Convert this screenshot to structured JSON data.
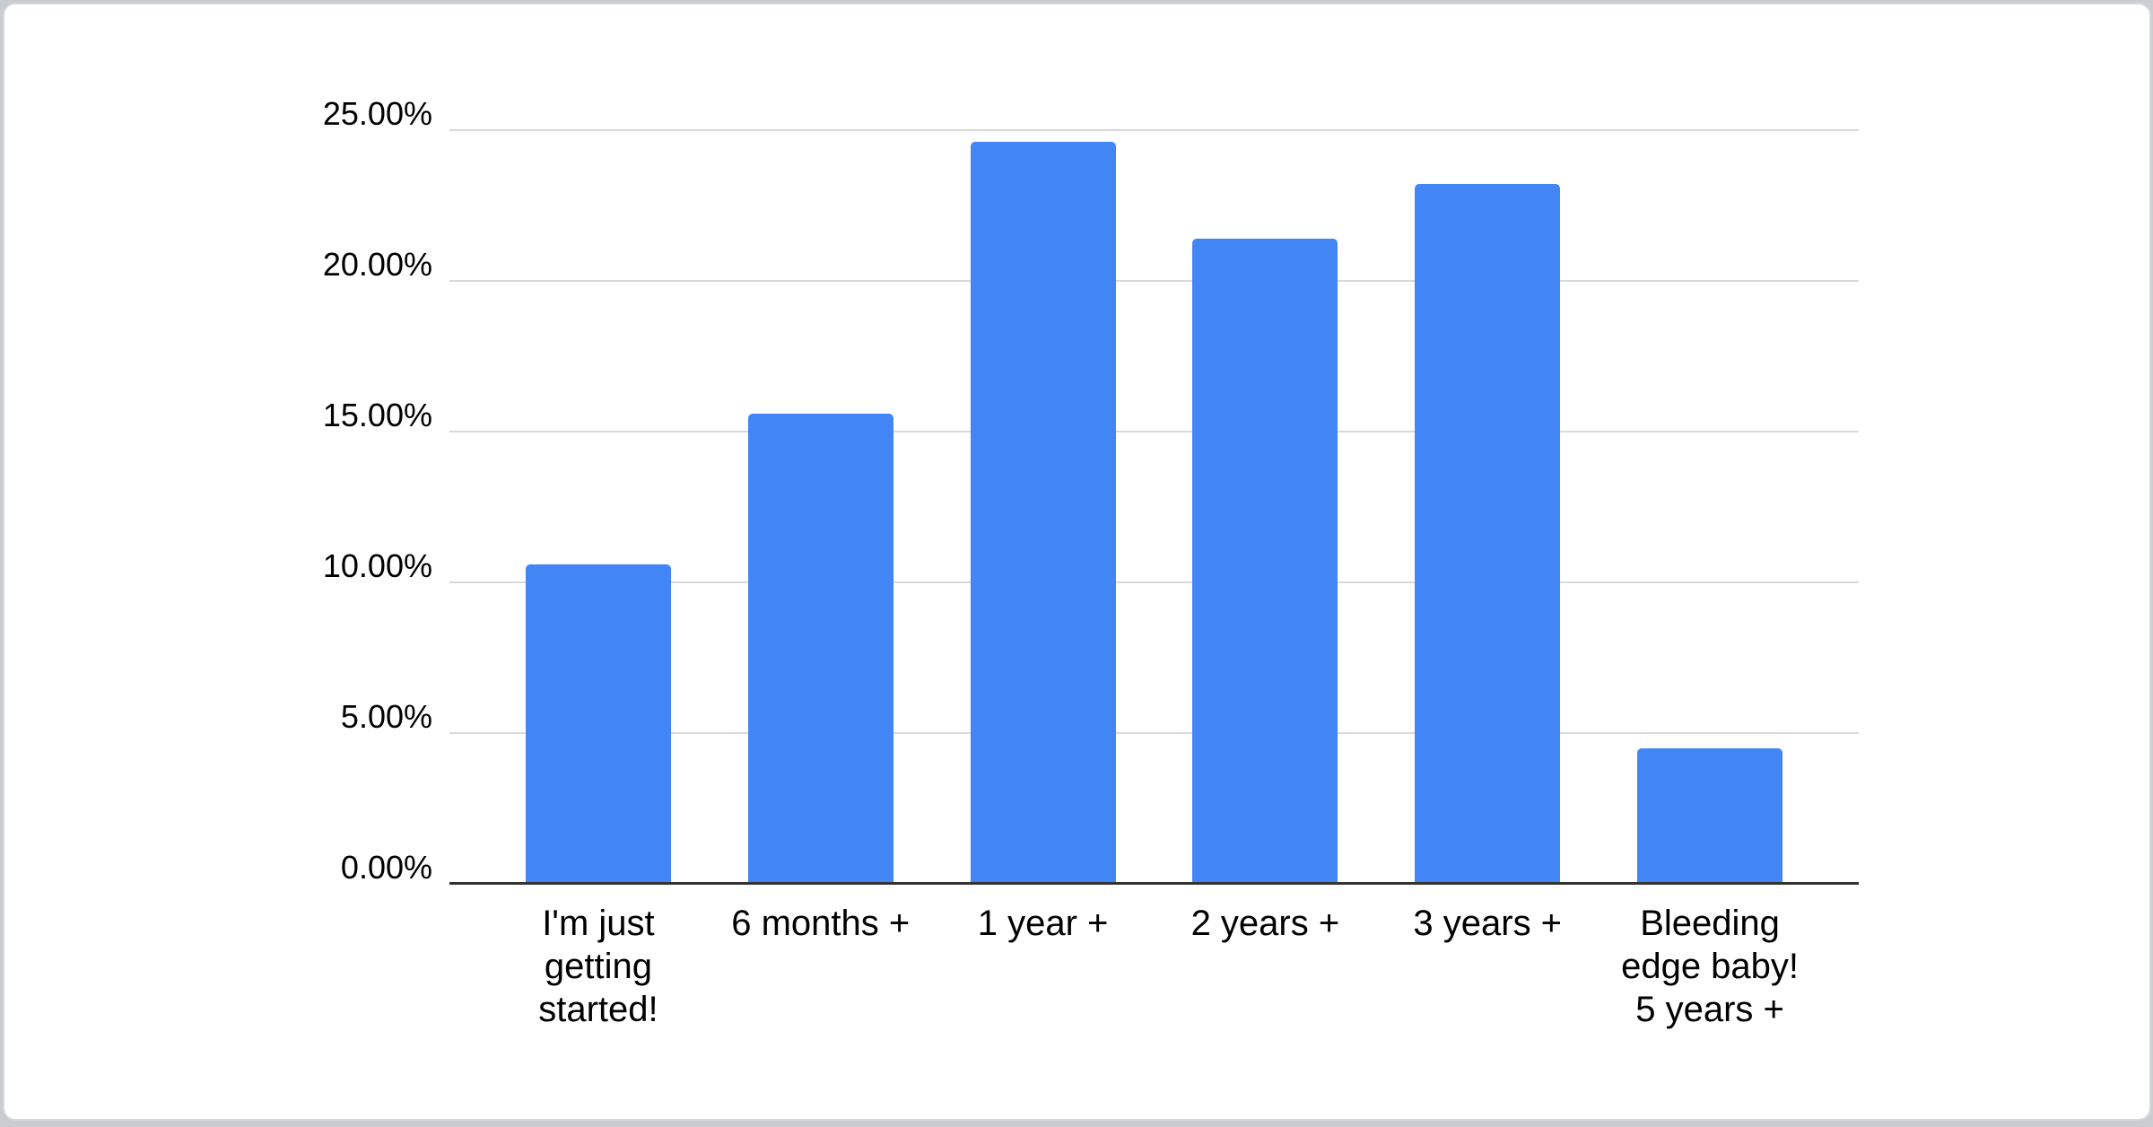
{
  "chart_data": {
    "type": "bar",
    "title": "",
    "xlabel": "",
    "ylabel": "",
    "categories": [
      "I'm just\ngetting\nstarted!",
      "6 months +",
      "1 year +",
      "2 years +",
      "3 years +",
      "Bleeding\nedge baby!\n5 years +"
    ],
    "values": [
      10.6,
      15.6,
      24.6,
      21.4,
      23.2,
      4.5
    ],
    "values_unit": "%",
    "ylim": [
      0,
      25
    ],
    "ytick_step": 5,
    "ytick_labels": [
      "0.00%",
      "5.00%",
      "10.00%",
      "15.00%",
      "20.00%",
      "25.00%"
    ],
    "grid": true,
    "legend_position": "none",
    "bar_color": "#4285f4",
    "gridline_color": "#d9d9d9",
    "axis_line_color": "#333333",
    "label_color": "#000000"
  },
  "page": {
    "card_background": "#ffffff",
    "outer_background": "#c9ccd1"
  }
}
